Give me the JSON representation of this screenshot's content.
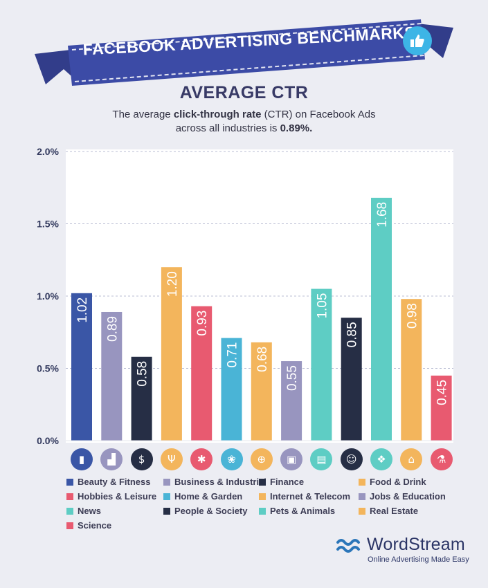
{
  "banner": {
    "title": "FACEBOOK ADVERTISING BENCHMARKS"
  },
  "header": {
    "title": "AVERAGE CTR",
    "subtitle_pre": "The average ",
    "subtitle_bold": "click-through rate",
    "subtitle_mid": " (CTR) on Facebook Ads",
    "subtitle_line2": "across all industries is ",
    "subtitle_value": "0.89%."
  },
  "chart_data": {
    "type": "bar",
    "categories": [
      "Beauty & Fitness",
      "Business & Industrial",
      "Finance",
      "Food & Drink",
      "Hobbies & Leisure",
      "Home & Garden",
      "Internet & Telecom",
      "Jobs & Education",
      "News",
      "People & Society",
      "Pets & Animals",
      "Real Estate",
      "Science"
    ],
    "values": [
      1.02,
      0.89,
      0.58,
      1.2,
      0.93,
      0.71,
      0.68,
      0.55,
      1.05,
      0.85,
      1.68,
      0.98,
      0.45
    ],
    "value_labels": [
      "1.02",
      "0.89",
      "0.58",
      "1.20",
      "0.93",
      "0.71",
      "0.68",
      "0.55",
      "1.05",
      "0.85",
      "1.68",
      "0.98",
      "0.45"
    ],
    "colors": [
      "#3a56a6",
      "#9895bf",
      "#262e45",
      "#f3b55c",
      "#e85a70",
      "#4ab4d6",
      "#f3b55c",
      "#9895bf",
      "#5ecdc4",
      "#262e45",
      "#5ecdc4",
      "#f3b55c",
      "#e85a70"
    ],
    "ylim": [
      0,
      2.0
    ],
    "yticks": [
      0,
      0.5,
      1.0,
      1.5,
      2.0
    ],
    "ytick_labels": [
      "0.0%",
      "0.5%",
      "1.0%",
      "1.5%",
      "2.0%"
    ],
    "grid": true,
    "legend_position": "bottom"
  },
  "icons": [
    "lipstick-icon",
    "factory-icon",
    "dollar-icon",
    "fork-knife-icon",
    "puzzle-icon",
    "flower-icon",
    "globe-icon",
    "briefcase-icon",
    "newspaper-icon",
    "people-icon",
    "paw-icon",
    "house-icon",
    "flask-icon"
  ],
  "icon_glyphs": [
    "▮",
    "▟",
    "$",
    "Ψ",
    "✱",
    "❀",
    "⊕",
    "▣",
    "▤",
    "☺",
    "❖",
    "⌂",
    "⚗"
  ],
  "brand": {
    "name": "WordStream",
    "tagline": "Online Advertising Made Easy"
  }
}
